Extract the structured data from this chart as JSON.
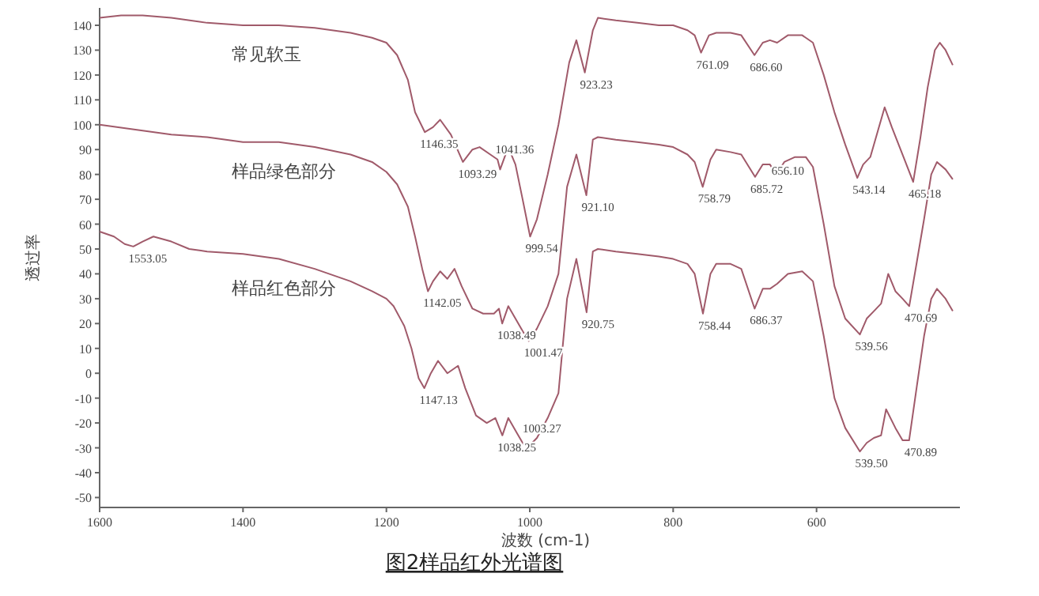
{
  "chart_data": {
    "type": "line",
    "title": "图2样品红外光谱图",
    "xlabel": "波数 (cm-1)",
    "ylabel": "透过率",
    "xlim": [
      1600,
      400
    ],
    "xticks": [
      1600,
      1400,
      1200,
      1000,
      800,
      600
    ],
    "ylim": [
      -54,
      147
    ],
    "yticks": [
      -50,
      -40,
      -30,
      -20,
      -10,
      0,
      10,
      20,
      30,
      40,
      50,
      60,
      70,
      80,
      90,
      100,
      110,
      120,
      130,
      140
    ],
    "grid": false,
    "marker": "none",
    "line_style": "solid",
    "series": [
      {
        "name": "常见软玉",
        "color": "#a05a6a",
        "x": [
          1600,
          1570,
          1540,
          1500,
          1450,
          1400,
          1350,
          1300,
          1250,
          1220,
          1200,
          1185,
          1170,
          1160,
          1146.35,
          1135,
          1125,
          1110,
          1093.29,
          1080,
          1070,
          1055,
          1045,
          1041.36,
          1030,
          1020,
          1010,
          999.54,
          990,
          975,
          960,
          945,
          935,
          923.23,
          912,
          905,
          880,
          850,
          820,
          800,
          780,
          770,
          761.09,
          750,
          740,
          720,
          705,
          686.6,
          675,
          665,
          655,
          640,
          620,
          605,
          590,
          575,
          560,
          543.14,
          535,
          525,
          515,
          505,
          495,
          480,
          465.18,
          455,
          445,
          435,
          428,
          420,
          410
        ],
        "values": [
          143,
          144,
          144,
          143,
          141,
          140,
          140,
          139,
          137,
          135,
          133,
          128,
          118,
          105,
          97,
          99,
          102,
          96,
          85,
          90,
          91,
          88,
          86,
          82,
          91,
          84,
          70,
          55,
          62,
          80,
          100,
          125,
          134,
          121,
          138,
          143,
          142,
          141,
          140,
          140,
          138,
          136,
          129,
          136,
          137,
          137,
          136,
          128,
          133,
          134,
          133,
          136,
          136,
          133,
          120,
          105,
          92,
          78.6,
          84,
          87,
          97,
          107,
          99,
          88,
          77,
          95,
          115,
          130,
          133,
          130,
          124
        ]
      },
      {
        "name": "样品绿色部分",
        "color": "#a05a6a",
        "x": [
          1600,
          1550,
          1500,
          1450,
          1400,
          1350,
          1300,
          1250,
          1220,
          1200,
          1185,
          1170,
          1160,
          1150,
          1142.05,
          1135,
          1125,
          1115,
          1105,
          1095,
          1080,
          1065,
          1050,
          1043,
          1038.49,
          1030,
          1020,
          1010,
          1001.47,
          990,
          975,
          960,
          948,
          935,
          921.1,
          912,
          905,
          880,
          850,
          820,
          800,
          780,
          770,
          758.79,
          748,
          740,
          720,
          705,
          685.72,
          675,
          665,
          656.1,
          645,
          630,
          615,
          605,
          590,
          575,
          560,
          539.56,
          530,
          520,
          510,
          500,
          490,
          480,
          470.69,
          460,
          450,
          440,
          432,
          420,
          410
        ],
        "values": [
          100,
          98,
          96,
          95,
          93,
          93,
          91,
          88,
          85,
          81,
          76,
          67,
          55,
          42,
          33,
          37,
          41,
          38,
          42,
          35,
          26,
          24,
          24,
          26,
          20,
          27,
          22,
          17,
          13,
          18,
          27,
          40,
          75,
          88,
          71.6,
          94,
          95,
          94,
          93,
          92,
          91,
          88,
          85,
          75,
          86,
          90,
          89,
          88,
          79,
          84,
          84,
          80,
          85,
          87,
          87,
          83,
          60,
          35,
          22,
          15.6,
          22,
          25,
          28,
          40,
          33,
          30,
          27,
          45,
          62,
          80,
          85,
          82,
          78
        ]
      },
      {
        "name": "样品红色部分",
        "color": "#a05a6a",
        "x": [
          1600,
          1580,
          1565,
          1553.05,
          1540,
          1525,
          1500,
          1475,
          1450,
          1400,
          1350,
          1300,
          1250,
          1220,
          1200,
          1190,
          1175,
          1165,
          1155,
          1147.13,
          1138,
          1128,
          1115,
          1100,
          1090,
          1075,
          1060,
          1048,
          1038.25,
          1030,
          1018,
          1010,
          1003.27,
          990,
          975,
          960,
          948,
          935,
          920.75,
          912,
          905,
          880,
          850,
          820,
          800,
          780,
          770,
          758.44,
          748,
          740,
          720,
          705,
          686.37,
          675,
          665,
          655,
          640,
          620,
          605,
          590,
          575,
          560,
          539.5,
          530,
          520,
          510,
          503,
          490,
          480,
          470.89,
          460,
          450,
          440,
          432,
          420,
          410
        ],
        "values": [
          57,
          55,
          52,
          51,
          53,
          55,
          53,
          50,
          49,
          48,
          46,
          42,
          37,
          33,
          30,
          27,
          19,
          10,
          -2,
          -6,
          0,
          5,
          0,
          3,
          -6,
          -17,
          -20,
          -18,
          -25,
          -18,
          -24,
          -28,
          -30,
          -26,
          -18,
          -8,
          30,
          46,
          24.5,
          49,
          50,
          49,
          48,
          47,
          46,
          44,
          40,
          24,
          40,
          44,
          44,
          42,
          26,
          34,
          34,
          36,
          40,
          41,
          37,
          15,
          -10,
          -22,
          -31.5,
          -28,
          -26,
          -25,
          -14.5,
          -22,
          -27,
          -27,
          -5,
          15,
          30,
          34,
          30,
          25
        ]
      }
    ],
    "annotations": [
      {
        "text": "1146.35",
        "x": 1146.35,
        "y": 97
      },
      {
        "text": "1093.29",
        "x": 1093.29,
        "y": 85
      },
      {
        "text": "1041.36",
        "x": 1041.36,
        "y": 82
      },
      {
        "text": "999.54",
        "x": 999.54,
        "y": 55
      },
      {
        "text": "923.23",
        "x": 923.23,
        "y": 121
      },
      {
        "text": "761.09",
        "x": 761.09,
        "y": 129
      },
      {
        "text": "686.60",
        "x": 686.6,
        "y": 128
      },
      {
        "text": "543.14",
        "x": 543.14,
        "y": 78.6
      },
      {
        "text": "465.18",
        "x": 465.18,
        "y": 77
      },
      {
        "text": "1142.05",
        "x": 1142.05,
        "y": 33
      },
      {
        "text": "1038.49",
        "x": 1038.49,
        "y": 20
      },
      {
        "text": "1001.47",
        "x": 1001.47,
        "y": 13
      },
      {
        "text": "921.10",
        "x": 921.1,
        "y": 71.6
      },
      {
        "text": "758.79",
        "x": 758.79,
        "y": 75
      },
      {
        "text": "685.72",
        "x": 685.72,
        "y": 79
      },
      {
        "text": "656.10",
        "x": 656.1,
        "y": 80
      },
      {
        "text": "539.56",
        "x": 539.56,
        "y": 15.6
      },
      {
        "text": "470.69",
        "x": 470.69,
        "y": 27
      },
      {
        "text": "1553.05",
        "x": 1553.05,
        "y": 51
      },
      {
        "text": "1147.13",
        "x": 1147.13,
        "y": -6
      },
      {
        "text": "1038.25",
        "x": 1038.25,
        "y": -25
      },
      {
        "text": "1003.27",
        "x": 1003.27,
        "y": -30
      },
      {
        "text": "920.75",
        "x": 920.75,
        "y": 24.5
      },
      {
        "text": "758.44",
        "x": 758.44,
        "y": 24
      },
      {
        "text": "686.37",
        "x": 686.37,
        "y": 26
      },
      {
        "text": "539.50",
        "x": 539.5,
        "y": -31.5
      },
      {
        "text": "470.89",
        "x": 470.89,
        "y": -27
      }
    ]
  }
}
